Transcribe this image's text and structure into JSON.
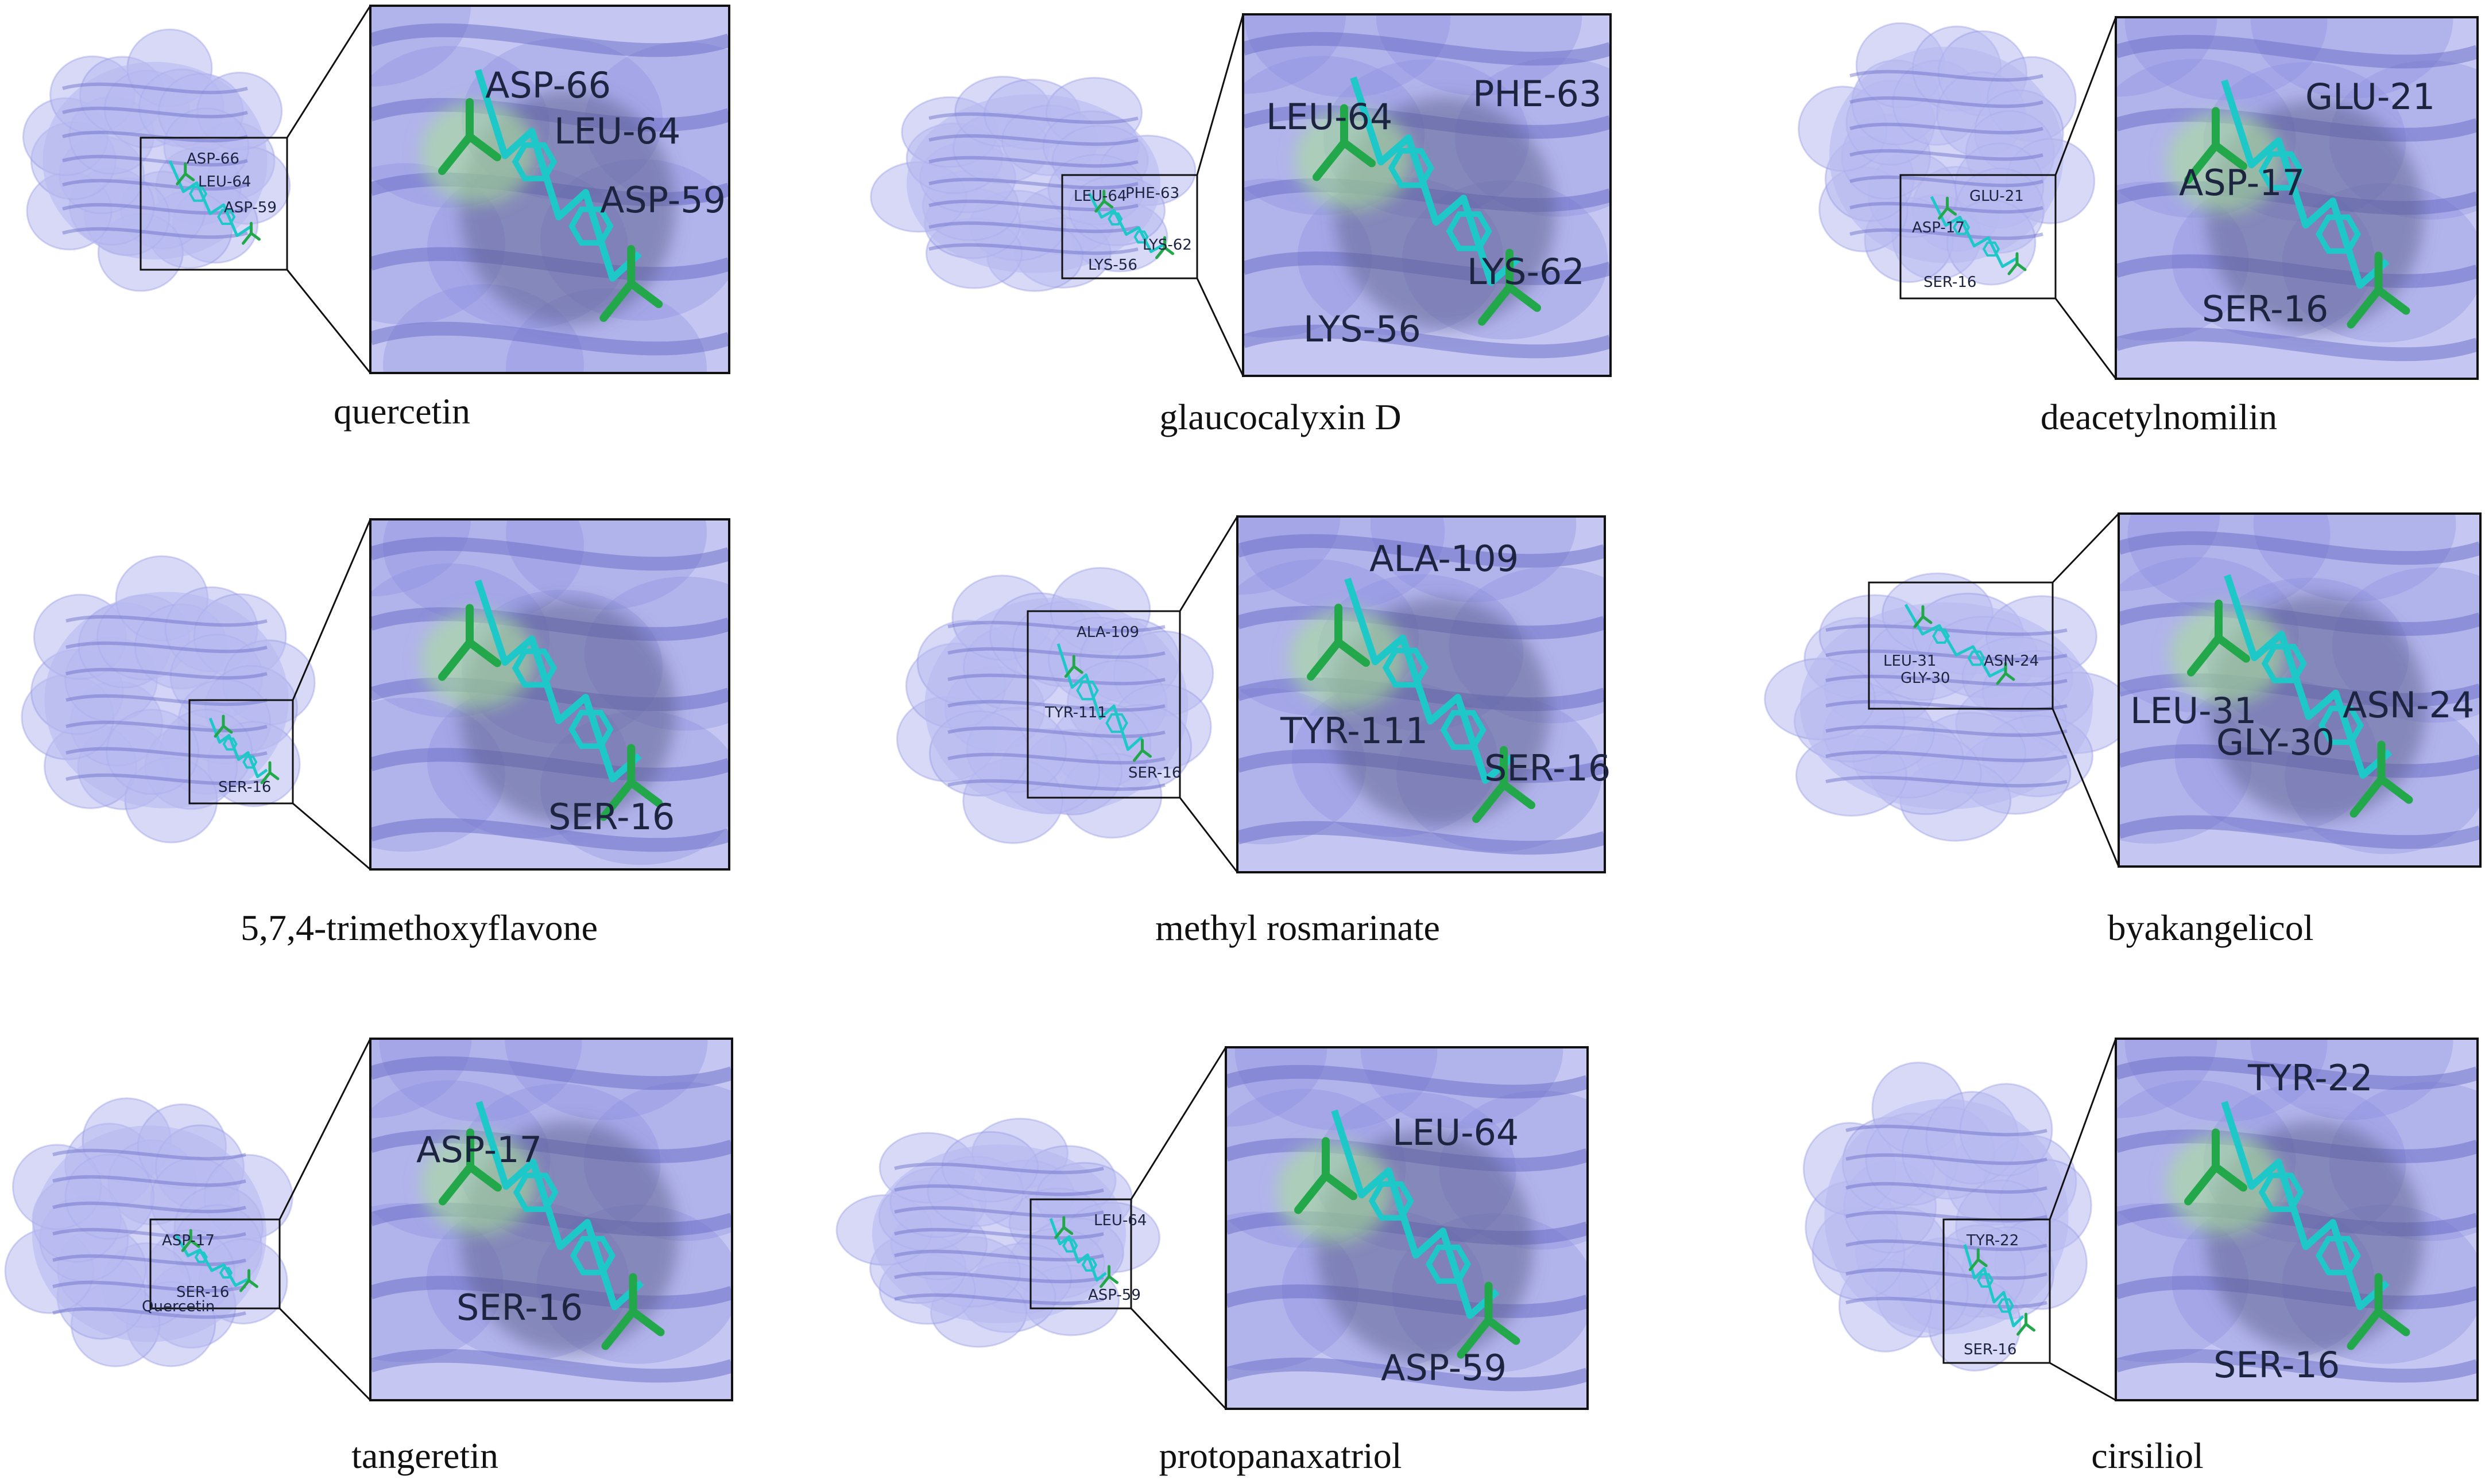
{
  "colors": {
    "surface": "#b7b9f0",
    "surface_dark": "#8c8ee0",
    "ribbon": "#6a6cc8",
    "ligand": "#1ec8c8",
    "residue": "#22a84a",
    "pocket_green": "#a8df9a",
    "text": "#1c2440",
    "frame": "#111111"
  },
  "panels": [
    {
      "caption": "quercetin",
      "small_labels": [
        "ASP-66",
        "LEU-64",
        "ASP-59"
      ],
      "zoom_labels": [
        "ASP-66",
        "LEU-64",
        "ASP-59"
      ],
      "extra_label": ""
    },
    {
      "caption": "glaucocalyxin D",
      "small_labels": [
        "LEU-64",
        "PHE-63",
        "LYS-62",
        "LYS-56"
      ],
      "zoom_labels": [
        "LEU-64",
        "PHE-63",
        "LYS-62",
        "LYS-56"
      ],
      "extra_label": ""
    },
    {
      "caption": "deacetylnomilin",
      "small_labels": [
        "GLU-21",
        "ASP-17",
        "SER-16"
      ],
      "zoom_labels": [
        "GLU-21",
        "ASP-17",
        "SER-16"
      ],
      "extra_label": ""
    },
    {
      "caption": "5,7,4-trimethoxyflavone",
      "small_labels": [
        "SER-16"
      ],
      "zoom_labels": [
        "SER-16"
      ],
      "extra_label": ""
    },
    {
      "caption": "methyl rosmarinate",
      "small_labels": [
        "ALA-109",
        "TYR-111",
        "SER-16"
      ],
      "zoom_labels": [
        "ALA-109",
        "TYR-111",
        "SER-16"
      ],
      "extra_label": ""
    },
    {
      "caption": "byakangelicol",
      "small_labels": [
        "LEU-31",
        "ASN-24",
        "GLY-30"
      ],
      "zoom_labels": [
        "LEU-31",
        "ASN-24",
        "GLY-30"
      ],
      "extra_label": ""
    },
    {
      "caption": "tangeretin",
      "small_labels": [
        "ASP-17",
        "SER-16"
      ],
      "zoom_labels": [
        "ASP-17",
        "SER-16"
      ],
      "extra_label": "Quercetin"
    },
    {
      "caption": "protopanaxatriol",
      "small_labels": [
        "LEU-64",
        "ASP-59"
      ],
      "zoom_labels": [
        "LEU-64",
        "ASP-59"
      ],
      "extra_label": ""
    },
    {
      "caption": "cirsiliol",
      "small_labels": [
        "TYR-22",
        "SER-16"
      ],
      "zoom_labels": [
        "TYR-22",
        "SER-16"
      ],
      "extra_label": ""
    }
  ]
}
